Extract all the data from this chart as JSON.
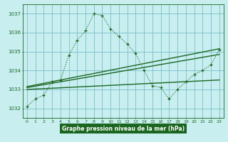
{
  "title": "Graphe pression niveau de la mer (hPa)",
  "bg_color": "#c8eef0",
  "grid_color": "#7abfc8",
  "line_color": "#1a6620",
  "title_bg": "#1a6620",
  "title_fg": "#ffffff",
  "x_ticks": [
    0,
    1,
    2,
    3,
    4,
    5,
    6,
    7,
    8,
    9,
    10,
    11,
    12,
    13,
    14,
    15,
    16,
    17,
    18,
    19,
    20,
    21,
    22,
    23
  ],
  "ylim": [
    1031.5,
    1037.5
  ],
  "yticks": [
    1032,
    1033,
    1034,
    1035,
    1036,
    1037
  ],
  "main_x": [
    0,
    1,
    2,
    3,
    4,
    5,
    6,
    7,
    8,
    9,
    10,
    11,
    12,
    13,
    14,
    15,
    16,
    17,
    18,
    19,
    20,
    21,
    22,
    23
  ],
  "main_y": [
    1032.1,
    1032.5,
    1032.7,
    1033.4,
    1033.5,
    1034.8,
    1035.6,
    1036.1,
    1037.0,
    1036.9,
    1036.2,
    1035.8,
    1035.4,
    1034.9,
    1034.0,
    1033.2,
    1033.1,
    1032.5,
    1033.0,
    1033.4,
    1033.8,
    1034.0,
    1034.3,
    1035.1
  ],
  "trend1_x": [
    0,
    23
  ],
  "trend1_y": [
    1033.1,
    1034.85
  ],
  "trend2_x": [
    0,
    23
  ],
  "trend2_y": [
    1033.15,
    1035.15
  ],
  "trend3_x": [
    0,
    23
  ],
  "trend3_y": [
    1033.0,
    1033.5
  ]
}
